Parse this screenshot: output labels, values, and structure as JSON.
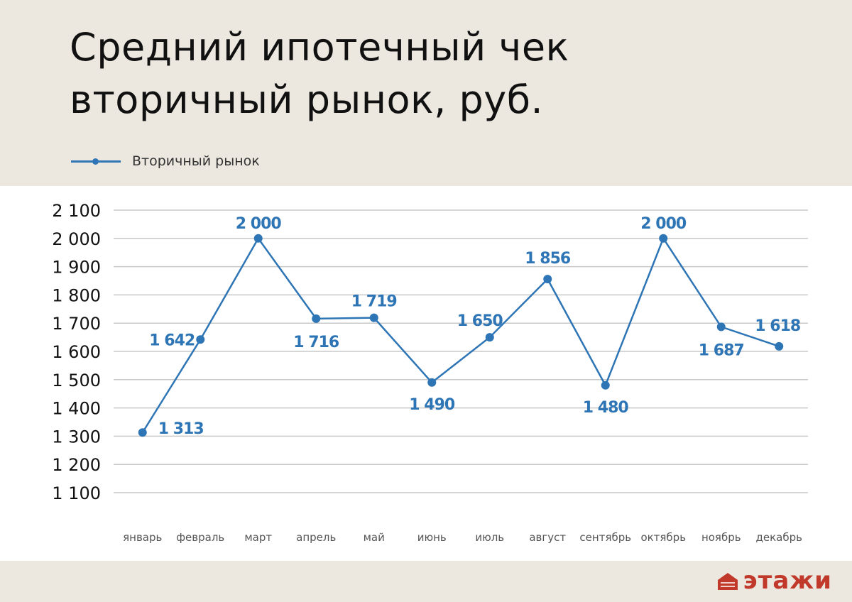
{
  "title_line1": "Средний ипотечный чек",
  "title_line2": "вторичный рынок, руб.",
  "legend": {
    "label": "Вторичный рынок"
  },
  "colors": {
    "series": "#2e75b6",
    "grid": "#c8c8c8",
    "axis_text": "#111111",
    "category_text": "#555555",
    "logo": "#c0392b"
  },
  "logo": {
    "text": "этажи"
  },
  "chart_data": {
    "type": "line",
    "categories": [
      "январь",
      "февраль",
      "март",
      "апрель",
      "май",
      "июнь",
      "июль",
      "август",
      "сентябрь",
      "октябрь",
      "ноябрь",
      "декабрь"
    ],
    "series": [
      {
        "name": "Вторичный рынок",
        "values": [
          1313,
          1642,
          2000,
          1716,
          1719,
          1490,
          1650,
          1856,
          1480,
          2000,
          1687,
          1618
        ],
        "labels": [
          "1 313",
          "1 642",
          "2 000",
          "1 716",
          "1 719",
          "1 490",
          "1 650",
          "1 856",
          "1 480",
          "2 000",
          "1 687",
          "1 618"
        ]
      }
    ],
    "yticks": [
      "1 100",
      "1 200",
      "1 300",
      "1 400",
      "1 500",
      "1 600",
      "1 700",
      "1 800",
      "1 900",
      "2 000",
      "2 100"
    ],
    "ylim": [
      1100,
      2100
    ],
    "grid": true,
    "legend": "top-left"
  }
}
